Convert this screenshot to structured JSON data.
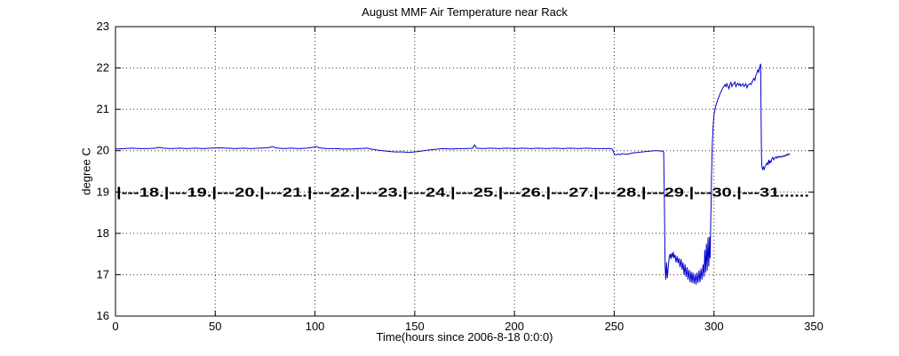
{
  "chart_data": {
    "type": "line",
    "title": "August MMF Air Temperature near Rack",
    "xlabel": "Time(hours since 2006-8-18 0:0:0)",
    "ylabel": "degree C",
    "xlim": [
      0,
      350
    ],
    "ylim": [
      16,
      23
    ],
    "xticks": [
      0,
      50,
      100,
      150,
      200,
      250,
      300,
      350
    ],
    "yticks": [
      16,
      17,
      18,
      19,
      20,
      21,
      22,
      23
    ],
    "grid": true,
    "grid_style": "dotted",
    "legend": "none",
    "line_color": "#0000CC",
    "axis_color": "#000000",
    "background_color": "#ffffff",
    "annotation": {
      "text": "|---18.|---19.|---20.|---21.|---22.|---23.|---24.|---25.|---26.|---27.|---28.|---29.|---30.|---31......",
      "y": 19,
      "meaning": "day-of-month markers along the time axis"
    },
    "series": [
      {
        "name": "MMF air temperature near rack",
        "color": "#0000CC",
        "points": [
          [
            0,
            20.04
          ],
          [
            4,
            20.05
          ],
          [
            8,
            20.06
          ],
          [
            12,
            20.05
          ],
          [
            16,
            20.05
          ],
          [
            20,
            20.06
          ],
          [
            22,
            20.08
          ],
          [
            24,
            20.06
          ],
          [
            28,
            20.05
          ],
          [
            32,
            20.06
          ],
          [
            36,
            20.05
          ],
          [
            40,
            20.06
          ],
          [
            44,
            20.05
          ],
          [
            48,
            20.06
          ],
          [
            52,
            20.07
          ],
          [
            56,
            20.06
          ],
          [
            60,
            20.05
          ],
          [
            64,
            20.06
          ],
          [
            68,
            20.05
          ],
          [
            72,
            20.06
          ],
          [
            76,
            20.07
          ],
          [
            79,
            20.1
          ],
          [
            80,
            20.07
          ],
          [
            84,
            20.05
          ],
          [
            88,
            20.06
          ],
          [
            92,
            20.05
          ],
          [
            96,
            20.06
          ],
          [
            100,
            20.09
          ],
          [
            101,
            20.1
          ],
          [
            102,
            20.07
          ],
          [
            106,
            20.05
          ],
          [
            110,
            20.05
          ],
          [
            114,
            20.04
          ],
          [
            118,
            20.04
          ],
          [
            122,
            20.05
          ],
          [
            126,
            20.06
          ],
          [
            128,
            20.04
          ],
          [
            132,
            20.01
          ],
          [
            136,
            19.99
          ],
          [
            140,
            19.97
          ],
          [
            144,
            19.97
          ],
          [
            147,
            19.96
          ],
          [
            150,
            19.97
          ],
          [
            153,
            19.99
          ],
          [
            156,
            20.01
          ],
          [
            160,
            20.03
          ],
          [
            164,
            20.05
          ],
          [
            168,
            20.04
          ],
          [
            172,
            20.05
          ],
          [
            176,
            20.05
          ],
          [
            179,
            20.06
          ],
          [
            180,
            20.14
          ],
          [
            181,
            20.06
          ],
          [
            184,
            20.05
          ],
          [
            188,
            20.06
          ],
          [
            192,
            20.05
          ],
          [
            196,
            20.06
          ],
          [
            200,
            20.05
          ],
          [
            204,
            20.06
          ],
          [
            208,
            20.05
          ],
          [
            212,
            20.06
          ],
          [
            216,
            20.05
          ],
          [
            220,
            20.06
          ],
          [
            224,
            20.05
          ],
          [
            228,
            20.06
          ],
          [
            232,
            20.05
          ],
          [
            236,
            20.06
          ],
          [
            240,
            20.05
          ],
          [
            244,
            20.05
          ],
          [
            248,
            20.05
          ],
          [
            249,
            20.04
          ],
          [
            250,
            19.92
          ],
          [
            251,
            19.9
          ],
          [
            252,
            19.92
          ],
          [
            253,
            19.9
          ],
          [
            254,
            19.93
          ],
          [
            256,
            19.91
          ],
          [
            258,
            19.93
          ],
          [
            260,
            19.95
          ],
          [
            262,
            19.96
          ],
          [
            264,
            19.97
          ],
          [
            266,
            19.98
          ],
          [
            268,
            19.99
          ],
          [
            270,
            20.0
          ],
          [
            272,
            20.0
          ],
          [
            274,
            19.99
          ],
          [
            274.8,
            19.97
          ],
          [
            275.2,
            18.6
          ],
          [
            275.5,
            17.2
          ],
          [
            275.8,
            16.88
          ],
          [
            276.2,
            17.3
          ],
          [
            276.6,
            16.92
          ],
          [
            277,
            17.15
          ],
          [
            277.5,
            17.4
          ],
          [
            278,
            17.5
          ],
          [
            278.4,
            17.38
          ],
          [
            278.8,
            17.52
          ],
          [
            279.2,
            17.42
          ],
          [
            279.6,
            17.55
          ],
          [
            280,
            17.4
          ],
          [
            280.5,
            17.48
          ],
          [
            281,
            17.3
          ],
          [
            281.5,
            17.45
          ],
          [
            282,
            17.28
          ],
          [
            282.5,
            17.4
          ],
          [
            283,
            17.18
          ],
          [
            283.5,
            17.38
          ],
          [
            284,
            17.12
          ],
          [
            284.5,
            17.3
          ],
          [
            285,
            17.0
          ],
          [
            285.5,
            17.25
          ],
          [
            286,
            16.95
          ],
          [
            286.5,
            17.18
          ],
          [
            287,
            16.88
          ],
          [
            287.5,
            17.12
          ],
          [
            288,
            16.82
          ],
          [
            288.5,
            17.08
          ],
          [
            289,
            16.8
          ],
          [
            289.5,
            17.05
          ],
          [
            290,
            16.78
          ],
          [
            290.5,
            17.02
          ],
          [
            291,
            16.76
          ],
          [
            291.5,
            17.05
          ],
          [
            292,
            16.8
          ],
          [
            292.5,
            17.1
          ],
          [
            293,
            16.82
          ],
          [
            293.5,
            17.15
          ],
          [
            294,
            16.88
          ],
          [
            294.5,
            17.25
          ],
          [
            295,
            16.95
          ],
          [
            295.4,
            17.6
          ],
          [
            295.8,
            17.05
          ],
          [
            296.2,
            17.75
          ],
          [
            296.6,
            17.1
          ],
          [
            297,
            17.9
          ],
          [
            297.4,
            17.2
          ],
          [
            297.8,
            17.92
          ],
          [
            298.1,
            17.4
          ],
          [
            298.4,
            18.3
          ],
          [
            298.8,
            19.4
          ],
          [
            299.2,
            20.2
          ],
          [
            299.6,
            20.6
          ],
          [
            300,
            20.85
          ],
          [
            300.5,
            21.0
          ],
          [
            301,
            21.1
          ],
          [
            301.5,
            21.18
          ],
          [
            302,
            21.25
          ],
          [
            302.5,
            21.3
          ],
          [
            303,
            21.38
          ],
          [
            303.5,
            21.42
          ],
          [
            304,
            21.48
          ],
          [
            304.5,
            21.52
          ],
          [
            305,
            21.55
          ],
          [
            305.5,
            21.6
          ],
          [
            306,
            21.55
          ],
          [
            306.5,
            21.62
          ],
          [
            307,
            21.56
          ],
          [
            307.5,
            21.5
          ],
          [
            308,
            21.6
          ],
          [
            308.5,
            21.65
          ],
          [
            309,
            21.55
          ],
          [
            309.5,
            21.6
          ],
          [
            310,
            21.62
          ],
          [
            310.5,
            21.66
          ],
          [
            311,
            21.55
          ],
          [
            311.5,
            21.6
          ],
          [
            312,
            21.63
          ],
          [
            312.5,
            21.58
          ],
          [
            313,
            21.62
          ],
          [
            313.5,
            21.56
          ],
          [
            314,
            21.6
          ],
          [
            314.5,
            21.62
          ],
          [
            315,
            21.55
          ],
          [
            315.5,
            21.58
          ],
          [
            316,
            21.62
          ],
          [
            316.5,
            21.52
          ],
          [
            317,
            21.58
          ],
          [
            317.5,
            21.6
          ],
          [
            318,
            21.62
          ],
          [
            318.5,
            21.6
          ],
          [
            319,
            21.65
          ],
          [
            319.5,
            21.7
          ],
          [
            320,
            21.75
          ],
          [
            320.5,
            21.7
          ],
          [
            321,
            21.82
          ],
          [
            321.5,
            21.88
          ],
          [
            322,
            21.95
          ],
          [
            322.4,
            21.9
          ],
          [
            322.8,
            22.0
          ],
          [
            323.1,
            22.05
          ],
          [
            323.4,
            22.1
          ],
          [
            323.6,
            21.0
          ],
          [
            323.8,
            19.9
          ],
          [
            324,
            19.62
          ],
          [
            324.4,
            19.55
          ],
          [
            324.8,
            19.6
          ],
          [
            325.2,
            19.55
          ],
          [
            325.6,
            19.62
          ],
          [
            326,
            19.65
          ],
          [
            326.5,
            19.7
          ],
          [
            327,
            19.66
          ],
          [
            327.5,
            19.78
          ],
          [
            327.8,
            19.68
          ],
          [
            328.2,
            19.75
          ],
          [
            328.6,
            19.72
          ],
          [
            329,
            19.8
          ],
          [
            329.5,
            19.84
          ],
          [
            330,
            19.78
          ],
          [
            330.5,
            19.82
          ],
          [
            331,
            19.85
          ],
          [
            331.5,
            19.82
          ],
          [
            332,
            19.86
          ],
          [
            332.5,
            19.84
          ],
          [
            333,
            19.86
          ],
          [
            333.5,
            19.84
          ],
          [
            334,
            19.87
          ],
          [
            334.5,
            19.85
          ],
          [
            335,
            19.88
          ],
          [
            335.5,
            19.86
          ],
          [
            336,
            19.9
          ],
          [
            336.5,
            19.88
          ],
          [
            337,
            19.92
          ],
          [
            337.5,
            19.9
          ],
          [
            338,
            19.93
          ]
        ]
      }
    ]
  }
}
